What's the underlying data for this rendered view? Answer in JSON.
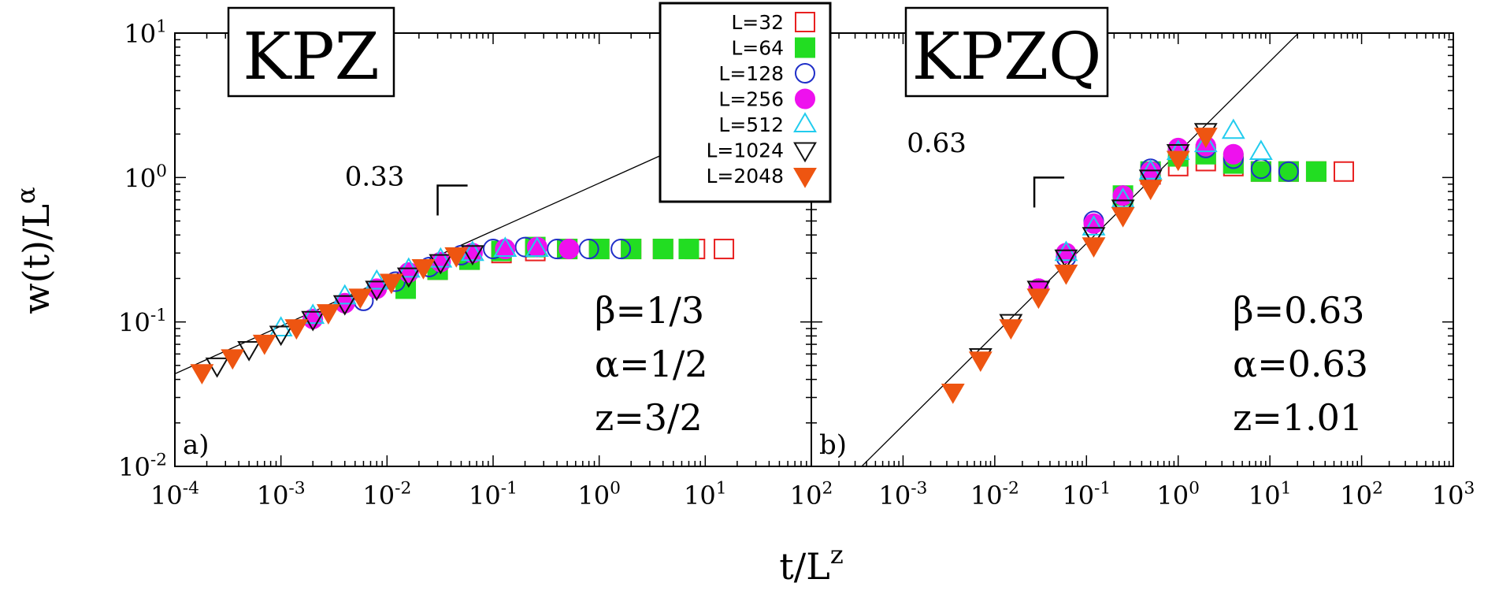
{
  "figure": {
    "xlabel_base": "t/L",
    "xlabel_sup": "z",
    "ylabel_base": "w(t)/L",
    "ylabel_sup": "α"
  },
  "series_style": [
    {
      "label": "L=32",
      "marker": "square",
      "fill": false,
      "color": "#e82020"
    },
    {
      "label": "L=64",
      "marker": "square",
      "fill": true,
      "color": "#22dd22"
    },
    {
      "label": "L=128",
      "marker": "circle",
      "fill": false,
      "color": "#1f2ec8"
    },
    {
      "label": "L=256",
      "marker": "circle",
      "fill": true,
      "color": "#ee11ee"
    },
    {
      "label": "L=512",
      "marker": "triangle-up",
      "fill": false,
      "color": "#22ccee"
    },
    {
      "label": "L=1024",
      "marker": "triangle-down",
      "fill": false,
      "color": "#111111"
    },
    {
      "label": "L=2048",
      "marker": "triangle-down",
      "fill": true,
      "color": "#ee5511"
    }
  ],
  "chart_data": [
    {
      "type": "scatter",
      "title": "KPZ",
      "panel_label": "a)",
      "xscale": "log",
      "yscale": "log",
      "xlim": [
        0.0001,
        100
      ],
      "ylim": [
        0.01,
        10
      ],
      "x_ticks": [
        {
          "value": 0.0001,
          "base": "10",
          "exp": "-4"
        },
        {
          "value": 0.001,
          "base": "10",
          "exp": "-3"
        },
        {
          "value": 0.01,
          "base": "10",
          "exp": "-2"
        },
        {
          "value": 0.1,
          "base": "10",
          "exp": "-1"
        },
        {
          "value": 1,
          "base": "10",
          "exp": "0"
        },
        {
          "value": 10,
          "base": "10",
          "exp": "1"
        },
        {
          "value": 100,
          "base": "10",
          "exp": "2"
        }
      ],
      "y_ticks": [
        {
          "value": 0.01,
          "base": "10",
          "exp": "-2"
        },
        {
          "value": 0.1,
          "base": "10",
          "exp": "-1"
        },
        {
          "value": 1,
          "base": "10",
          "exp": "0"
        },
        {
          "value": 10,
          "base": "10",
          "exp": "1"
        }
      ],
      "fit_line": {
        "slope": 0.33,
        "x0": 0.01,
        "y0": 0.2
      },
      "slope_label": {
        "text": "0.33",
        "x": 0.004,
        "y": 0.88
      },
      "slope_marker": {
        "x": 0.03,
        "y": 0.88
      },
      "params": [
        "β=1/3",
        "α=1/2",
        "z=3/2"
      ],
      "series": [
        {
          "name": "L=32",
          "x": [
            0.03,
            0.06,
            0.12,
            0.25,
            0.5,
            1,
            2,
            4,
            8,
            15
          ],
          "y": [
            0.23,
            0.27,
            0.3,
            0.31,
            0.32,
            0.32,
            0.32,
            0.32,
            0.32,
            0.32
          ]
        },
        {
          "name": "L=64",
          "x": [
            0.015,
            0.03,
            0.06,
            0.12,
            0.25,
            0.5,
            1,
            2,
            4,
            7
          ],
          "y": [
            0.17,
            0.23,
            0.27,
            0.31,
            0.33,
            0.32,
            0.32,
            0.32,
            0.32,
            0.32
          ]
        },
        {
          "name": "L=128",
          "x": [
            0.006,
            0.012,
            0.025,
            0.05,
            0.1,
            0.2,
            0.4,
            0.8,
            1.6
          ],
          "y": [
            0.14,
            0.19,
            0.24,
            0.29,
            0.32,
            0.33,
            0.32,
            0.32,
            0.32
          ]
        },
        {
          "name": "L=256",
          "x": [
            0.002,
            0.004,
            0.008,
            0.016,
            0.032,
            0.064,
            0.13,
            0.26,
            0.52
          ],
          "y": [
            0.105,
            0.135,
            0.17,
            0.22,
            0.26,
            0.3,
            0.32,
            0.33,
            0.32
          ]
        },
        {
          "name": "L=512",
          "x": [
            0.001,
            0.002,
            0.004,
            0.008,
            0.016,
            0.032,
            0.064,
            0.13,
            0.26
          ],
          "y": [
            0.09,
            0.11,
            0.15,
            0.19,
            0.23,
            0.27,
            0.3,
            0.32,
            0.32
          ]
        },
        {
          "name": "L=1024",
          "x": [
            0.00025,
            0.0005,
            0.001,
            0.002,
            0.004,
            0.008,
            0.016,
            0.032,
            0.064
          ],
          "y": [
            0.05,
            0.065,
            0.083,
            0.105,
            0.135,
            0.17,
            0.21,
            0.26,
            0.3
          ]
        },
        {
          "name": "L=2048",
          "x": [
            0.00018,
            0.00035,
            0.0007,
            0.0014,
            0.0028,
            0.0056,
            0.011,
            0.022,
            0.045
          ],
          "y": [
            0.045,
            0.057,
            0.072,
            0.092,
            0.117,
            0.15,
            0.19,
            0.24,
            0.29
          ]
        }
      ]
    },
    {
      "type": "scatter",
      "title": "KPZQ",
      "panel_label": "b)",
      "xscale": "log",
      "yscale": "log",
      "xlim": [
        0.0001,
        1000
      ],
      "ylim": [
        0.01,
        10
      ],
      "x_ticks": [
        {
          "value": 0.001,
          "base": "10",
          "exp": "-3"
        },
        {
          "value": 0.01,
          "base": "10",
          "exp": "-2"
        },
        {
          "value": 0.1,
          "base": "10",
          "exp": "-1"
        },
        {
          "value": 1,
          "base": "10",
          "exp": "0"
        },
        {
          "value": 10,
          "base": "10",
          "exp": "1"
        },
        {
          "value": 100,
          "base": "10",
          "exp": "2"
        },
        {
          "value": 1000,
          "base": "10",
          "exp": "3"
        }
      ],
      "y_ticks": [],
      "fit_line": {
        "slope": 0.63,
        "x0": 0.1,
        "y0": 0.35
      },
      "slope_label": {
        "text": "0.63",
        "x": 0.0011,
        "y": 1.5
      },
      "slope_marker": {
        "x": 0.027,
        "y": 1.0
      },
      "params": [
        "β=0.63",
        "α=0.63",
        "z=1.01"
      ],
      "series": [
        {
          "name": "L=32",
          "x": [
            0.5,
            1,
            2,
            4,
            8,
            16,
            32,
            64
          ],
          "y": [
            1.05,
            1.2,
            1.3,
            1.2,
            1.1,
            1.1,
            1.1,
            1.1
          ]
        },
        {
          "name": "L=64",
          "x": [
            0.25,
            0.5,
            1,
            2,
            4,
            8,
            16,
            32
          ],
          "y": [
            0.75,
            1.1,
            1.4,
            1.45,
            1.25,
            1.1,
            1.1,
            1.1
          ]
        },
        {
          "name": "L=128",
          "x": [
            0.03,
            0.06,
            0.12,
            0.25,
            0.5,
            1,
            2,
            4,
            8,
            16
          ],
          "y": [
            0.17,
            0.28,
            0.5,
            0.75,
            1.15,
            1.55,
            1.6,
            1.35,
            1.15,
            1.1
          ]
        },
        {
          "name": "L=256",
          "x": [
            0.03,
            0.06,
            0.12,
            0.25,
            0.5,
            1,
            2,
            4
          ],
          "y": [
            0.17,
            0.3,
            0.48,
            0.75,
            1.1,
            1.6,
            1.65,
            1.45
          ]
        },
        {
          "name": "L=512",
          "x": [
            0.06,
            0.12,
            0.25,
            0.5,
            1,
            2,
            4,
            8
          ],
          "y": [
            0.3,
            0.45,
            0.7,
            1.1,
            1.5,
            1.7,
            2.1,
            1.5
          ]
        },
        {
          "name": "L=1024",
          "x": [
            0.007,
            0.015,
            0.03,
            0.06,
            0.12,
            0.25,
            0.5,
            1,
            2
          ],
          "y": [
            0.058,
            0.1,
            0.17,
            0.28,
            0.4,
            0.62,
            1.0,
            1.5,
            2.1
          ]
        },
        {
          "name": "L=2048",
          "x": [
            0.0035,
            0.007,
            0.015,
            0.03,
            0.06,
            0.12,
            0.25,
            0.5,
            1,
            2
          ],
          "y": [
            0.033,
            0.055,
            0.092,
            0.15,
            0.22,
            0.34,
            0.55,
            0.85,
            1.35,
            1.95
          ]
        }
      ]
    }
  ]
}
